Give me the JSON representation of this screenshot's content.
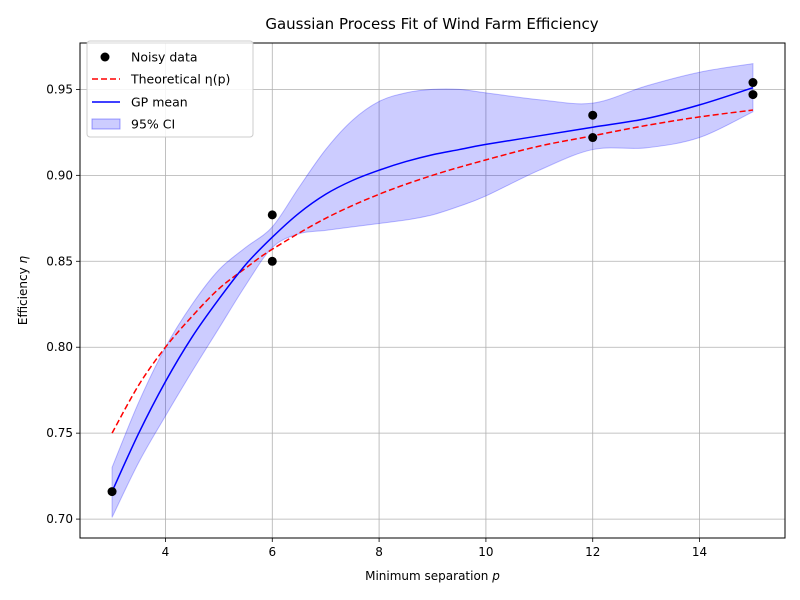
{
  "chart_data": {
    "type": "line",
    "title": "Gaussian Process Fit of Wind Farm Efficiency",
    "xlabel": "Minimum separation",
    "xlabel_var": "p",
    "ylabel": "Efficiency",
    "ylabel_var": "η",
    "xlim": [
      2.4,
      15.6
    ],
    "ylim": [
      0.689,
      0.977
    ],
    "xticks": [
      4,
      6,
      8,
      10,
      12,
      14
    ],
    "yticks": [
      0.7,
      0.75,
      0.8,
      0.85,
      0.9,
      0.95
    ],
    "xtick_labels": [
      "4",
      "6",
      "8",
      "10",
      "12",
      "14"
    ],
    "ytick_labels": [
      "0.70",
      "0.75",
      "0.80",
      "0.85",
      "0.90",
      "0.95"
    ],
    "grid": true,
    "legend_position": "top-left",
    "legend": [
      {
        "key": "scatter",
        "text": "Noisy data"
      },
      {
        "key": "theory",
        "text": "Theoretical η(p)"
      },
      {
        "key": "gp",
        "text": "GP mean"
      },
      {
        "key": "ci",
        "text": "95% CI"
      }
    ],
    "colors": {
      "scatter": "#000000",
      "theory": "#ff0000",
      "gp": "#0000ff",
      "ci_fill": "#0000ff"
    },
    "scatter": {
      "name": "Noisy data",
      "points": [
        {
          "x": 3,
          "y": 0.716
        },
        {
          "x": 6,
          "y": 0.877
        },
        {
          "x": 6,
          "y": 0.85
        },
        {
          "x": 12,
          "y": 0.935
        },
        {
          "x": 12,
          "y": 0.922
        },
        {
          "x": 15,
          "y": 0.954
        },
        {
          "x": 15,
          "y": 0.947
        }
      ]
    },
    "theory": {
      "name": "Theoretical η(p)",
      "x": [
        3,
        3.5,
        4,
        4.5,
        5,
        5.5,
        6,
        7,
        8,
        9,
        10,
        11,
        12,
        13,
        14,
        15
      ],
      "y": [
        0.75,
        0.778,
        0.8,
        0.818,
        0.834,
        0.846,
        0.857,
        0.875,
        0.889,
        0.9,
        0.909,
        0.917,
        0.923,
        0.929,
        0.934,
        0.938
      ]
    },
    "gp_mean": {
      "name": "GP mean",
      "x": [
        3,
        3.5,
        4,
        4.5,
        5,
        5.5,
        6,
        6.5,
        7,
        7.5,
        8,
        8.5,
        9,
        9.5,
        10,
        11,
        12,
        13,
        14,
        15
      ],
      "y": [
        0.716,
        0.75,
        0.78,
        0.806,
        0.828,
        0.848,
        0.864,
        0.878,
        0.889,
        0.897,
        0.903,
        0.908,
        0.912,
        0.915,
        0.918,
        0.923,
        0.928,
        0.933,
        0.941,
        0.951
      ]
    },
    "ci": {
      "name": "95% CI",
      "x": [
        3,
        3.5,
        4,
        4.5,
        5,
        5.5,
        6,
        6.5,
        7,
        7.5,
        8,
        8.5,
        9,
        9.5,
        10,
        11,
        12,
        13,
        14,
        15
      ],
      "upper": [
        0.73,
        0.768,
        0.8,
        0.825,
        0.845,
        0.858,
        0.87,
        0.893,
        0.915,
        0.932,
        0.943,
        0.948,
        0.95,
        0.95,
        0.948,
        0.944,
        0.942,
        0.952,
        0.96,
        0.965
      ],
      "lower": [
        0.701,
        0.733,
        0.76,
        0.786,
        0.811,
        0.836,
        0.858,
        0.866,
        0.868,
        0.87,
        0.872,
        0.874,
        0.877,
        0.882,
        0.888,
        0.903,
        0.915,
        0.916,
        0.922,
        0.937
      ]
    }
  }
}
